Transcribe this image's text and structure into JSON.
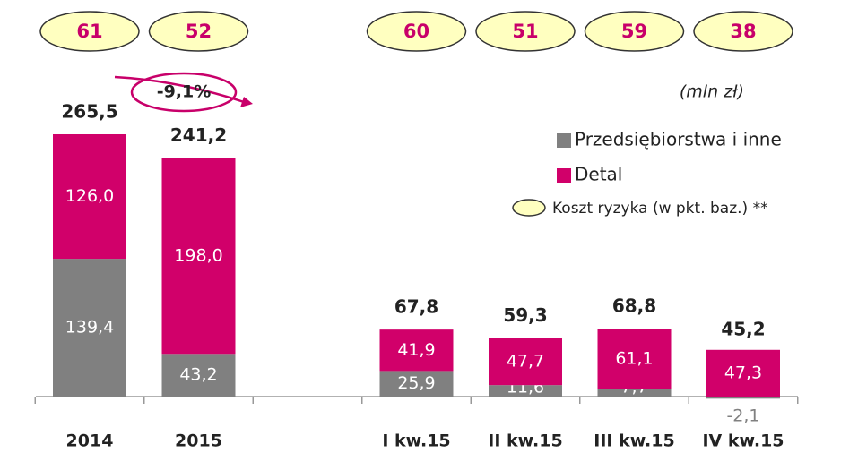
{
  "chart_data": {
    "type": "stacked-bar",
    "unit_label": "(mln zł)",
    "annotation": "-9,1%",
    "categories": [
      "2014",
      "2015",
      null,
      "I kw.15",
      "II kw.15",
      "III kw.15",
      "IV kw.15"
    ],
    "series": [
      {
        "name": "Przedsiębiorstwa i inne",
        "color": "#808080",
        "values": [
          139.4,
          43.2,
          null,
          25.9,
          11.6,
          7.7,
          -2.1
        ],
        "value_labels": [
          "139,4",
          "43,2",
          null,
          "25,9",
          "11,6",
          "7,7",
          "-2,1"
        ]
      },
      {
        "name": "Detal",
        "color": "#d1006a",
        "values": [
          126.0,
          198.0,
          null,
          41.9,
          47.7,
          61.1,
          47.3
        ],
        "value_labels": [
          "126,0",
          "198,0",
          null,
          "41,9",
          "47,7",
          "61,1",
          "47,3"
        ]
      }
    ],
    "totals": [
      265.5,
      241.2,
      null,
      67.8,
      59.3,
      68.8,
      45.2
    ],
    "total_labels": [
      "265,5",
      "241,2",
      null,
      "67,8",
      "59,3",
      "68,8",
      "45,2"
    ],
    "risk_cost": {
      "name": "Koszt ryzyka (w pkt. baz.) **",
      "color": "#ffffc0",
      "values": [
        61,
        52,
        null,
        60,
        51,
        59,
        38
      ]
    }
  }
}
